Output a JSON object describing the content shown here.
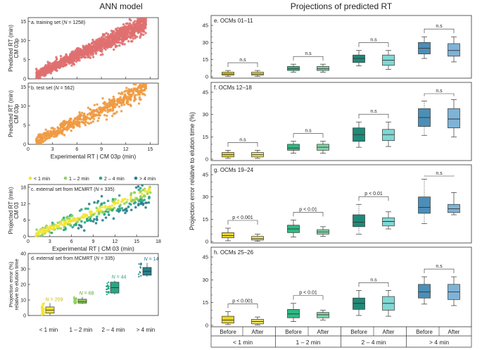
{
  "left_title": "ANN model",
  "right_title": "Projections of predicted RT",
  "colors": {
    "train": "#e07070",
    "test": "#ef9a42",
    "lt1": "#f4e430",
    "c12": "#8fd15a",
    "c24": "#2aa685",
    "gt4": "#2a7f8a",
    "box_before": [
      "#e8d62a",
      "#2fba83",
      "#1f8a78",
      "#4a8fb8"
    ],
    "box_after": [
      "#eee36a",
      "#7fd6a6",
      "#7fd8d4",
      "#7fb3d6"
    ]
  },
  "chart_data": [
    {
      "id": "a",
      "type": "scatter",
      "panel_label": "a. training set (N = 1258)",
      "xlim": [
        0,
        16
      ],
      "ylim": [
        0,
        16
      ],
      "xticks": [
        "0",
        "3",
        "6",
        "9",
        "12",
        "15"
      ],
      "yticks": [
        "0",
        "5",
        "10",
        "15"
      ],
      "ylabel": [
        "Predicted RT (min)",
        "CM 03p"
      ],
      "relation": {
        "slope": 1.0,
        "spread": 0.9,
        "n": 1258,
        "x_range": [
          1.0,
          14.5
        ]
      }
    },
    {
      "id": "b",
      "type": "scatter",
      "panel_label": "b. test set (N = 562)",
      "xlim": [
        0,
        16
      ],
      "ylim": [
        0,
        16
      ],
      "xticks": [
        "0",
        "3",
        "6",
        "9",
        "12",
        "15"
      ],
      "yticks": [
        "0",
        "5",
        "10",
        "15"
      ],
      "ylabel": [
        "Predicted RT (min)",
        "CM 03p"
      ],
      "xlabel": "Experimental RT | CM 03p (min)",
      "relation": {
        "slope": 1.0,
        "spread": 1.0,
        "n": 562,
        "x_range": [
          1.0,
          14.5
        ]
      }
    },
    {
      "id": "c",
      "type": "scatter",
      "panel_label": "c. external set from MCMRT (N = 335)",
      "xlim": [
        0,
        18
      ],
      "ylim": [
        0,
        19
      ],
      "xticks": [
        "0",
        "3",
        "6",
        "9",
        "12",
        "15",
        "18"
      ],
      "yticks": [
        "0",
        "6",
        "12",
        "18"
      ],
      "ylabel": [
        "Projected RT (min)",
        "CM 03"
      ],
      "xlabel": "Experimental RT | CM 03 (min)",
      "legend": [
        "< 1 min",
        "1 – 2 min",
        "2 – 4 min",
        "> 4 min"
      ],
      "relation": {
        "slope": 0.9,
        "spread": 1.6,
        "n": 335,
        "x_range": [
          1.0,
          17.0
        ]
      }
    },
    {
      "id": "d",
      "type": "box",
      "panel_label": "d. external set from MCMRT (N = 335)",
      "ylim": [
        0,
        40
      ],
      "yticks": [
        "0",
        "10",
        "20",
        "30",
        "40"
      ],
      "ylabel": [
        "Projection error (%)",
        "relative to elution time"
      ],
      "categories": [
        "< 1 min",
        "1 – 2 min",
        "2 – 4 min",
        "> 4 min"
      ],
      "n_labels": [
        "N = 209",
        "N = 68",
        "N = 44",
        "N = 14"
      ],
      "boxes": [
        {
          "q1": 1.5,
          "median": 3.5,
          "q3": 5.5,
          "low": 0.2,
          "high": 8.0
        },
        {
          "q1": 8.0,
          "median": 9.0,
          "q3": 10.5,
          "low": 7.5,
          "high": 12.0
        },
        {
          "q1": 14.5,
          "median": 18.0,
          "q3": 21.5,
          "low": 13.5,
          "high": 22.5
        },
        {
          "q1": 26.0,
          "median": 28.5,
          "q3": 31.0,
          "low": 25.0,
          "high": 34.0
        }
      ]
    },
    {
      "id": "e",
      "type": "box",
      "panel_label": "e. OCMs 01–11",
      "ylim": [
        0,
        45
      ],
      "yticks": [
        "0",
        "15",
        "30",
        "45"
      ],
      "minor_yticks": [
        "5",
        "10",
        "20",
        "25",
        "35",
        "40"
      ],
      "before": [
        {
          "q1": 1.5,
          "median": 2.5,
          "q3": 4.0,
          "low": 0.3,
          "high": 5.5
        },
        {
          "q1": 5.5,
          "median": 7.0,
          "q3": 9.0,
          "low": 4.0,
          "high": 11.0
        },
        {
          "q1": 12.5,
          "median": 16.0,
          "q3": 19.0,
          "low": 9.5,
          "high": 23.0
        },
        {
          "q1": 20.0,
          "median": 25.0,
          "q3": 30.0,
          "low": 16.0,
          "high": 35.0
        }
      ],
      "after": [
        {
          "q1": 1.5,
          "median": 2.5,
          "q3": 4.0,
          "low": 0.3,
          "high": 5.5
        },
        {
          "q1": 5.5,
          "median": 7.0,
          "q3": 9.0,
          "low": 4.0,
          "high": 11.0
        },
        {
          "q1": 10.0,
          "median": 14.5,
          "q3": 19.0,
          "low": 6.5,
          "high": 23.0
        },
        {
          "q1": 18.0,
          "median": 23.0,
          "q3": 29.0,
          "low": 13.0,
          "high": 35.0
        }
      ],
      "significance": [
        "n.s",
        "n.s",
        "n.s",
        "n.s"
      ]
    },
    {
      "id": "f",
      "type": "box",
      "panel_label": "f. OCMs 12–18",
      "ylim": [
        0,
        45
      ],
      "yticks": [
        "0",
        "15",
        "30",
        "45"
      ],
      "minor_yticks": [
        "5",
        "10",
        "20",
        "25",
        "35",
        "40"
      ],
      "ylabel": [
        "Projection error relative to elution time (%)"
      ],
      "before": [
        {
          "q1": 1.5,
          "median": 3.0,
          "q3": 4.5,
          "low": 0.5,
          "high": 6.0
        },
        {
          "q1": 6.0,
          "median": 7.5,
          "q3": 10.0,
          "low": 4.0,
          "high": 12.0
        },
        {
          "q1": 12.0,
          "median": 16.5,
          "q3": 21.0,
          "low": 8.0,
          "high": 25.0
        },
        {
          "q1": 22.0,
          "median": 28.0,
          "q3": 34.0,
          "low": 16.0,
          "high": 39.0
        }
      ],
      "after": [
        {
          "q1": 1.5,
          "median": 3.0,
          "q3": 4.5,
          "low": 0.5,
          "high": 6.0
        },
        {
          "q1": 6.0,
          "median": 8.0,
          "q3": 10.0,
          "low": 4.0,
          "high": 12.0
        },
        {
          "q1": 12.5,
          "median": 16.5,
          "q3": 20.0,
          "low": 8.5,
          "high": 25.0
        },
        {
          "q1": 21.0,
          "median": 27.0,
          "q3": 34.0,
          "low": 15.0,
          "high": 40.0
        }
      ],
      "significance": [
        "n.s",
        "n.s",
        "n.s",
        "n.s"
      ]
    },
    {
      "id": "g",
      "type": "box",
      "panel_label": "g. OCMs 19–24",
      "ylim": [
        0,
        45
      ],
      "yticks": [
        "0",
        "15",
        "30",
        "45"
      ],
      "minor_yticks": [
        "5",
        "10",
        "20",
        "25",
        "35",
        "40"
      ],
      "before": [
        {
          "q1": 2.5,
          "median": 4.0,
          "q3": 6.0,
          "low": 0.5,
          "high": 9.0
        },
        {
          "q1": 6.0,
          "median": 8.5,
          "q3": 11.0,
          "low": 3.0,
          "high": 14.5
        },
        {
          "q1": 10.0,
          "median": 13.0,
          "q3": 18.0,
          "low": 5.0,
          "high": 25.0
        },
        {
          "q1": 19.0,
          "median": 23.0,
          "q3": 30.0,
          "low": 12.0,
          "high": 42.0
        }
      ],
      "after": [
        {
          "q1": 1.0,
          "median": 2.0,
          "q3": 3.5,
          "low": 0.2,
          "high": 5.0
        },
        {
          "q1": 5.0,
          "median": 6.5,
          "q3": 8.0,
          "low": 3.5,
          "high": 10.0
        },
        {
          "q1": 10.5,
          "median": 13.5,
          "q3": 16.0,
          "low": 8.5,
          "high": 20.0
        },
        {
          "q1": 19.5,
          "median": 22.0,
          "q3": 25.0,
          "low": 18.0,
          "high": 33.0
        }
      ],
      "significance": [
        "p < 0.001",
        "p < 0.01",
        "p < 0.01",
        "n.s"
      ]
    },
    {
      "id": "h",
      "type": "box",
      "panel_label": "h. OCMs 25–26",
      "ylim": [
        0,
        45
      ],
      "yticks": [
        "0",
        "15",
        "30",
        "45"
      ],
      "minor_yticks": [
        "5",
        "10",
        "20",
        "25",
        "35",
        "40"
      ],
      "categories": [
        "< 1 min",
        "1 – 2 min",
        "2 – 4 min",
        "> 4 min"
      ],
      "sublabels": [
        "Before",
        "After"
      ],
      "before": [
        {
          "q1": 1.5,
          "median": 3.5,
          "q3": 6.0,
          "low": 0.5,
          "high": 9.0
        },
        {
          "q1": 5.0,
          "median": 7.5,
          "q3": 10.5,
          "low": 2.5,
          "high": 14.5
        },
        {
          "q1": 10.5,
          "median": 14.5,
          "q3": 18.0,
          "low": 6.5,
          "high": 23.0
        },
        {
          "q1": 18.0,
          "median": 22.0,
          "q3": 27.0,
          "low": 14.0,
          "high": 32.0
        }
      ],
      "after": [
        {
          "q1": 1.0,
          "median": 2.5,
          "q3": 4.0,
          "low": 0.3,
          "high": 5.5
        },
        {
          "q1": 5.0,
          "median": 7.0,
          "q3": 8.5,
          "low": 3.5,
          "high": 10.0
        },
        {
          "q1": 10.0,
          "median": 14.5,
          "q3": 19.0,
          "low": 6.0,
          "high": 23.0
        },
        {
          "q1": 17.0,
          "median": 22.0,
          "q3": 27.0,
          "low": 13.0,
          "high": 32.0
        }
      ],
      "significance": [
        "p < 0.001",
        "p < 0.01",
        "n.s",
        "n.s"
      ]
    }
  ]
}
